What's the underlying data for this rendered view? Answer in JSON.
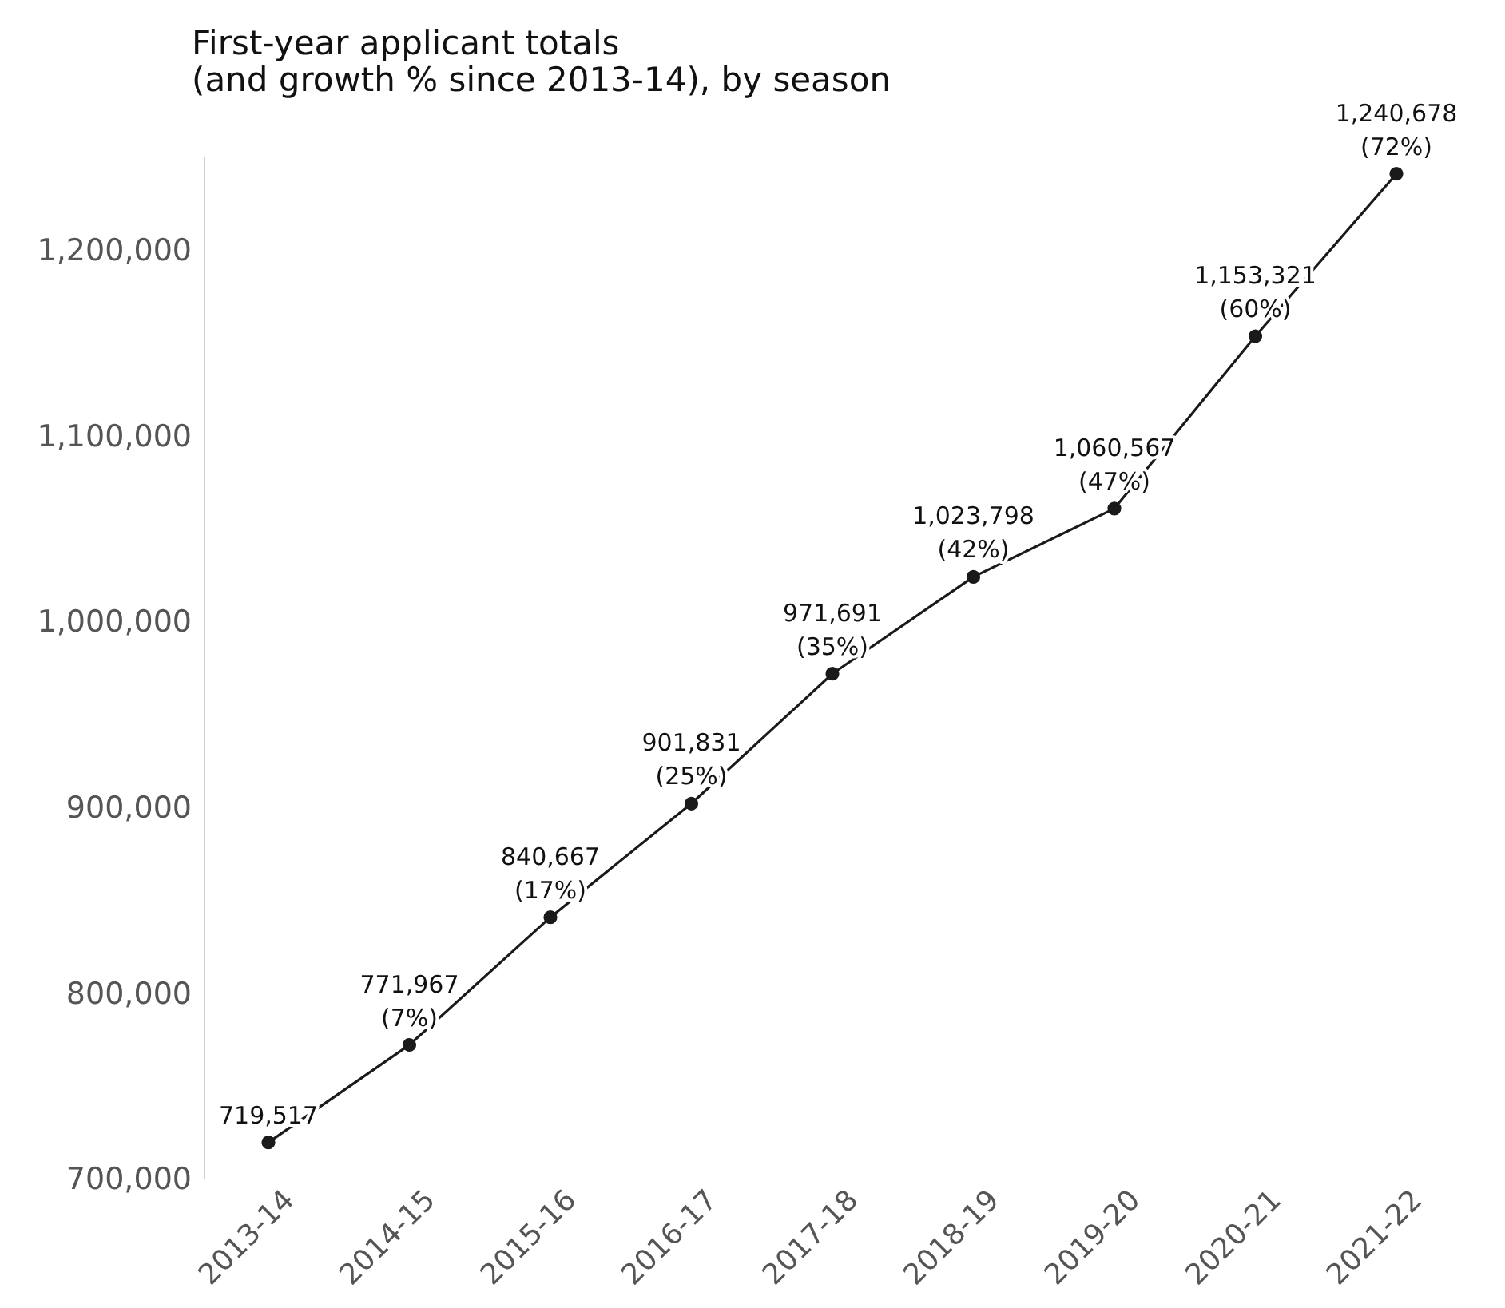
{
  "chart_data": {
    "type": "line",
    "title": "First-year applicant totals\n(and growth % since 2013-14), by season",
    "categories": [
      "2013-14",
      "2014-15",
      "2015-16",
      "2016-17",
      "2017-18",
      "2018-19",
      "2019-20",
      "2020-21",
      "2021-22"
    ],
    "series": [
      {
        "color": "#1a1a1a",
        "values": [
          719517,
          771967,
          840667,
          901831,
          971691,
          1023798,
          1060567,
          1153321,
          1240678
        ],
        "value_labels": [
          "719,517",
          "771,967\n(7%)",
          "840,667\n(17%)",
          "901,831\n(25%)",
          "971,691\n(35%)",
          "1,023,798\n(42%)",
          "1,060,567\n(47%)",
          "1,153,321\n(60%)",
          "1,240,678\n(72%)"
        ]
      }
    ],
    "ylim": [
      700000,
      1250000
    ],
    "yticks": [
      {
        "value": 700000,
        "label": "700,000"
      },
      {
        "value": 800000,
        "label": "800,000"
      },
      {
        "value": 900000,
        "label": "900,000"
      },
      {
        "value": 1000000,
        "label": "1,000,000"
      },
      {
        "value": 1100000,
        "label": "1,100,000"
      },
      {
        "value": 1200000,
        "label": "1,200,000"
      }
    ],
    "marker": "circle",
    "line_style": "solid",
    "grid": false,
    "legend": false
  }
}
